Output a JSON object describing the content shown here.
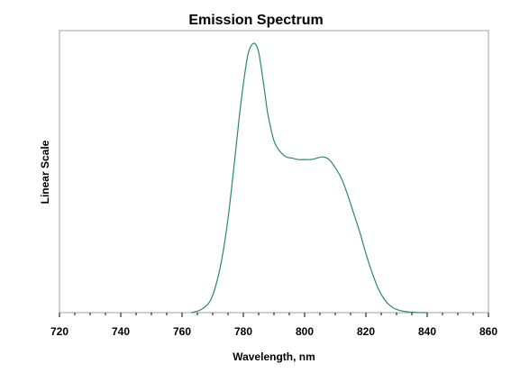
{
  "chart_data": {
    "type": "line",
    "title": "Emission Spectrum",
    "xlabel": "Wavelength, nm",
    "ylabel": "Linear Scale",
    "xlim": [
      720,
      860
    ],
    "ylim": [
      0,
      1.05
    ],
    "x_ticks": [
      "720",
      "740",
      "760",
      "780",
      "800",
      "820",
      "840",
      "860"
    ],
    "y_ticks_shown": false,
    "grid": false,
    "legend": "none",
    "series": [
      {
        "color": "#2e8b57",
        "x": [
          763,
          766,
          769,
          771,
          773,
          775,
          777,
          779,
          781,
          782,
          783,
          784,
          785,
          786,
          787,
          788,
          790,
          792,
          794,
          796,
          798,
          800,
          802,
          804,
          806,
          808,
          810,
          812,
          814,
          816,
          818,
          820,
          822,
          824,
          826,
          828,
          830,
          833,
          836,
          839,
          840
        ],
        "y": [
          0.0,
          0.01,
          0.04,
          0.1,
          0.2,
          0.35,
          0.55,
          0.76,
          0.93,
          0.98,
          1.0,
          1.0,
          0.97,
          0.9,
          0.82,
          0.74,
          0.64,
          0.6,
          0.58,
          0.575,
          0.57,
          0.57,
          0.57,
          0.575,
          0.58,
          0.57,
          0.54,
          0.5,
          0.44,
          0.37,
          0.3,
          0.22,
          0.15,
          0.09,
          0.05,
          0.025,
          0.012,
          0.004,
          0.001,
          0.0,
          0.0
        ]
      }
    ]
  }
}
